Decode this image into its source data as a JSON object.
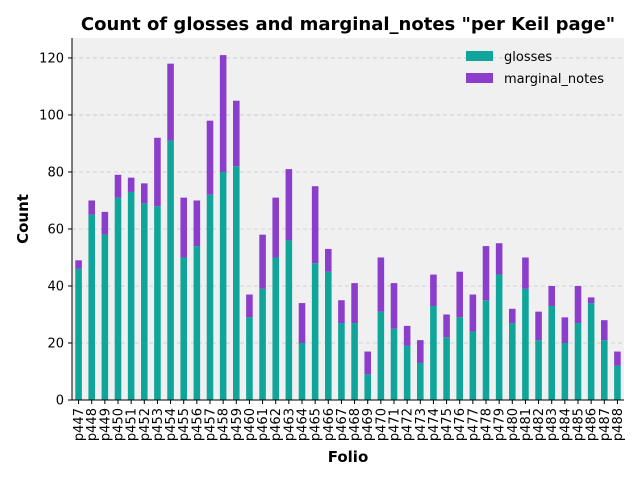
{
  "chart_data": {
    "type": "bar",
    "stacked": true,
    "title": "Count of glosses and marginal_notes \"per Keil page\"",
    "xlabel": "Folio",
    "ylabel": "Count",
    "ylim": [
      0,
      127
    ],
    "yticks": [
      0,
      20,
      40,
      60,
      80,
      100,
      120
    ],
    "grid": "y-dashed",
    "legend_position": "top-right",
    "categories": [
      "p447",
      "p448",
      "p449",
      "p450",
      "p451",
      "p452",
      "p453",
      "p454",
      "p455",
      "p456",
      "p457",
      "p458",
      "p459",
      "p460",
      "p461",
      "p462",
      "p463",
      "p464",
      "p465",
      "p466",
      "p467",
      "p468",
      "p469",
      "p470",
      "p471",
      "p472",
      "p473",
      "p474",
      "p475",
      "p476",
      "p477",
      "p478",
      "p479",
      "p480",
      "p481",
      "p482",
      "p483",
      "p484",
      "p485",
      "p486",
      "p487",
      "p488"
    ],
    "series": [
      {
        "name": "glosses",
        "color": "#0fa59a",
        "values": [
          46,
          65,
          58,
          71,
          73,
          69,
          68,
          91,
          50,
          54,
          72,
          80,
          82,
          29,
          39,
          50,
          56,
          20,
          48,
          45,
          27,
          27,
          9,
          31,
          25,
          19,
          13,
          33,
          22,
          29,
          24,
          35,
          44,
          27,
          39,
          21,
          33,
          20,
          27,
          34,
          21,
          12
        ]
      },
      {
        "name": "marginal_notes",
        "color": "#8b3dcb",
        "values": [
          3,
          5,
          8,
          8,
          5,
          7,
          24,
          27,
          21,
          16,
          26,
          41,
          23,
          8,
          19,
          21,
          25,
          14,
          27,
          8,
          8,
          14,
          8,
          19,
          16,
          7,
          8,
          11,
          8,
          16,
          13,
          19,
          11,
          5,
          11,
          10,
          7,
          9,
          13,
          2,
          7,
          5
        ]
      }
    ]
  }
}
